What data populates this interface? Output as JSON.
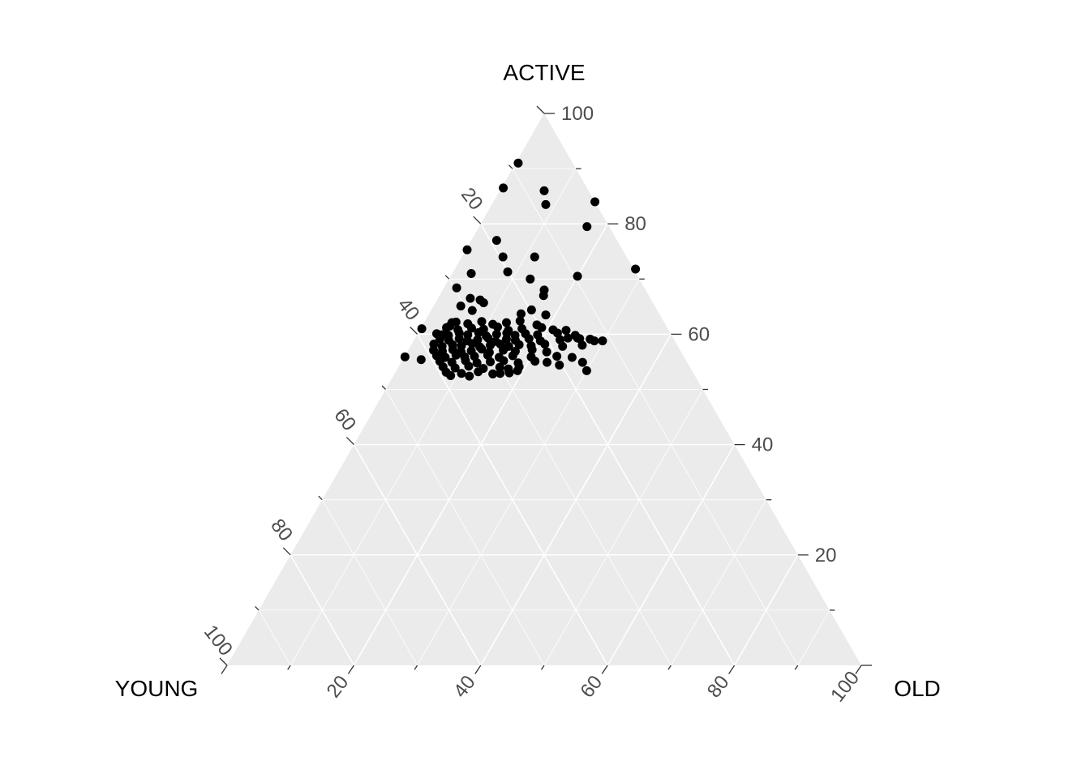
{
  "chart_data": {
    "type": "scatter",
    "subtype": "ternary",
    "title": "",
    "legend": "none",
    "axes": {
      "active": {
        "title": "ACTIVE",
        "vertex": "top",
        "labels_on": "right-edge",
        "labeled_ticks": [
          100,
          80,
          60,
          40,
          20
        ],
        "minor_ticks": [
          90,
          70,
          50,
          30,
          10
        ],
        "range": [
          0,
          100
        ]
      },
      "young": {
        "title": "YOUNG",
        "vertex": "bottom-left",
        "labels_on": "left-edge",
        "labeled_ticks": [
          20,
          40,
          60,
          80,
          100
        ],
        "minor_ticks": [
          10,
          30,
          50,
          70,
          90
        ],
        "range": [
          0,
          100
        ]
      },
      "old": {
        "title": "OLD",
        "vertex": "bottom-right",
        "labels_on": "bottom-edge",
        "labeled_ticks": [
          20,
          40,
          60,
          80,
          100
        ],
        "minor_ticks": [
          10,
          30,
          50,
          70,
          90
        ],
        "range": [
          0,
          100
        ]
      }
    },
    "grid": {
      "interval_major": 20,
      "interval_minor": 10,
      "visible": true
    },
    "style": {
      "panel_fill": "#ebebeb",
      "grid_color": "#ffffff",
      "tick_stroke": "#333333",
      "tick_label_color": "#4d4d4d",
      "title_color": "#000000",
      "point_color": "#000000",
      "point_radius": 5.5
    },
    "points_note": "Each point is [active, old]; young = 100 - active - old",
    "points_active_old": [
      [
        91,
        0.4
      ],
      [
        86.5,
        0.3
      ],
      [
        86,
        7
      ],
      [
        83.5,
        8.5
      ],
      [
        84,
        16
      ],
      [
        79.5,
        17
      ],
      [
        77,
        4
      ],
      [
        75.3,
        0.2
      ],
      [
        74,
        6.5
      ],
      [
        74,
        11.5
      ],
      [
        71,
        3
      ],
      [
        71.3,
        8.6
      ],
      [
        70,
        12.8
      ],
      [
        70.5,
        20
      ],
      [
        71.8,
        28.5
      ],
      [
        68.4,
        2
      ],
      [
        68,
        16
      ],
      [
        67,
        16.4
      ],
      [
        66.5,
        5.1
      ],
      [
        66.2,
        6.8
      ],
      [
        65.7,
        7.6
      ],
      [
        65.1,
        4.3
      ],
      [
        64.4,
        15.8
      ],
      [
        63.7,
        14.5
      ],
      [
        63.5,
        18.5
      ],
      [
        64.3,
        6.5
      ],
      [
        62.1,
        4.4
      ],
      [
        61.5,
        4.4
      ],
      [
        61,
        0.2
      ],
      [
        60,
        4.3
      ],
      [
        59.9,
        3.9
      ],
      [
        55.9,
        0.1
      ],
      [
        55.4,
        2.9
      ],
      [
        60.7,
        23.1
      ],
      [
        59.3,
        24.1
      ],
      [
        59.3,
        25.6
      ],
      [
        59.1,
        27.7
      ],
      [
        58.8,
        29.8
      ],
      [
        54.9,
        28.6
      ],
      [
        53.4,
        30
      ],
      [
        52.9,
        16.6
      ],
      [
        53.7,
        17.5
      ],
      [
        53.4,
        19.1
      ],
      [
        54.4,
        25.2
      ],
      [
        62.2,
        5
      ],
      [
        61.9,
        7
      ],
      [
        62.3,
        9
      ],
      [
        61.8,
        11
      ],
      [
        62.1,
        13
      ],
      [
        62.4,
        15
      ],
      [
        61.7,
        18
      ],
      [
        61.2,
        4
      ],
      [
        60.8,
        6
      ],
      [
        61.1,
        8
      ],
      [
        60.9,
        10
      ],
      [
        61.3,
        12
      ],
      [
        60.7,
        14
      ],
      [
        61.0,
        16
      ],
      [
        61.2,
        19
      ],
      [
        60.8,
        21
      ],
      [
        60.1,
        3
      ],
      [
        59.8,
        5
      ],
      [
        60.2,
        6.5
      ],
      [
        59.9,
        8
      ],
      [
        60.3,
        9.5
      ],
      [
        59.7,
        11
      ],
      [
        60.0,
        12.5
      ],
      [
        60.2,
        14
      ],
      [
        59.8,
        15.5
      ],
      [
        60.1,
        17
      ],
      [
        59.9,
        19
      ],
      [
        60.2,
        22
      ],
      [
        59.8,
        25
      ],
      [
        59.1,
        4
      ],
      [
        58.9,
        5.5
      ],
      [
        59.2,
        7
      ],
      [
        58.8,
        8.5
      ],
      [
        59.0,
        10
      ],
      [
        59.3,
        11.5
      ],
      [
        58.7,
        13
      ],
      [
        59.1,
        14.5
      ],
      [
        58.9,
        16
      ],
      [
        59.2,
        18
      ],
      [
        58.8,
        20
      ],
      [
        59.0,
        23
      ],
      [
        59.2,
        26
      ],
      [
        58.8,
        28.5
      ],
      [
        58.2,
        3.5
      ],
      [
        57.8,
        5
      ],
      [
        58.1,
        6.5
      ],
      [
        57.9,
        8
      ],
      [
        58.3,
        9.5
      ],
      [
        57.7,
        11
      ],
      [
        58.0,
        12.5
      ],
      [
        58.2,
        14
      ],
      [
        57.8,
        15.5
      ],
      [
        58.1,
        17
      ],
      [
        57.9,
        19
      ],
      [
        58.2,
        21
      ],
      [
        57.8,
        24
      ],
      [
        58.0,
        27
      ],
      [
        57.1,
        4
      ],
      [
        56.9,
        5.5
      ],
      [
        57.2,
        7
      ],
      [
        56.8,
        8.5
      ],
      [
        57.0,
        10
      ],
      [
        57.3,
        11.5
      ],
      [
        56.7,
        13
      ],
      [
        57.1,
        15
      ],
      [
        56.9,
        17
      ],
      [
        57.2,
        19.5
      ],
      [
        56.8,
        22
      ],
      [
        56.1,
        5
      ],
      [
        55.8,
        6.5
      ],
      [
        56.2,
        8
      ],
      [
        55.9,
        9.5
      ],
      [
        56.0,
        11
      ],
      [
        56.2,
        13
      ],
      [
        55.8,
        15
      ],
      [
        56.1,
        17
      ],
      [
        55.9,
        20
      ],
      [
        56.0,
        24
      ],
      [
        55.8,
        26.5
      ],
      [
        55.1,
        6
      ],
      [
        54.9,
        8
      ],
      [
        55.2,
        10
      ],
      [
        54.8,
        12
      ],
      [
        55.0,
        14
      ],
      [
        55.2,
        16
      ],
      [
        54.8,
        18.5
      ],
      [
        55.1,
        21
      ],
      [
        54.9,
        23
      ],
      [
        54.1,
        7
      ],
      [
        53.9,
        9
      ],
      [
        54.2,
        11
      ],
      [
        53.8,
        13.5
      ],
      [
        54.0,
        16
      ],
      [
        54.1,
        19
      ],
      [
        53.1,
        8
      ],
      [
        52.9,
        10.5
      ],
      [
        53.2,
        13
      ],
      [
        52.8,
        15.5
      ],
      [
        53.0,
        18
      ],
      [
        52.5,
        9
      ],
      [
        52.4,
        12
      ]
    ]
  }
}
